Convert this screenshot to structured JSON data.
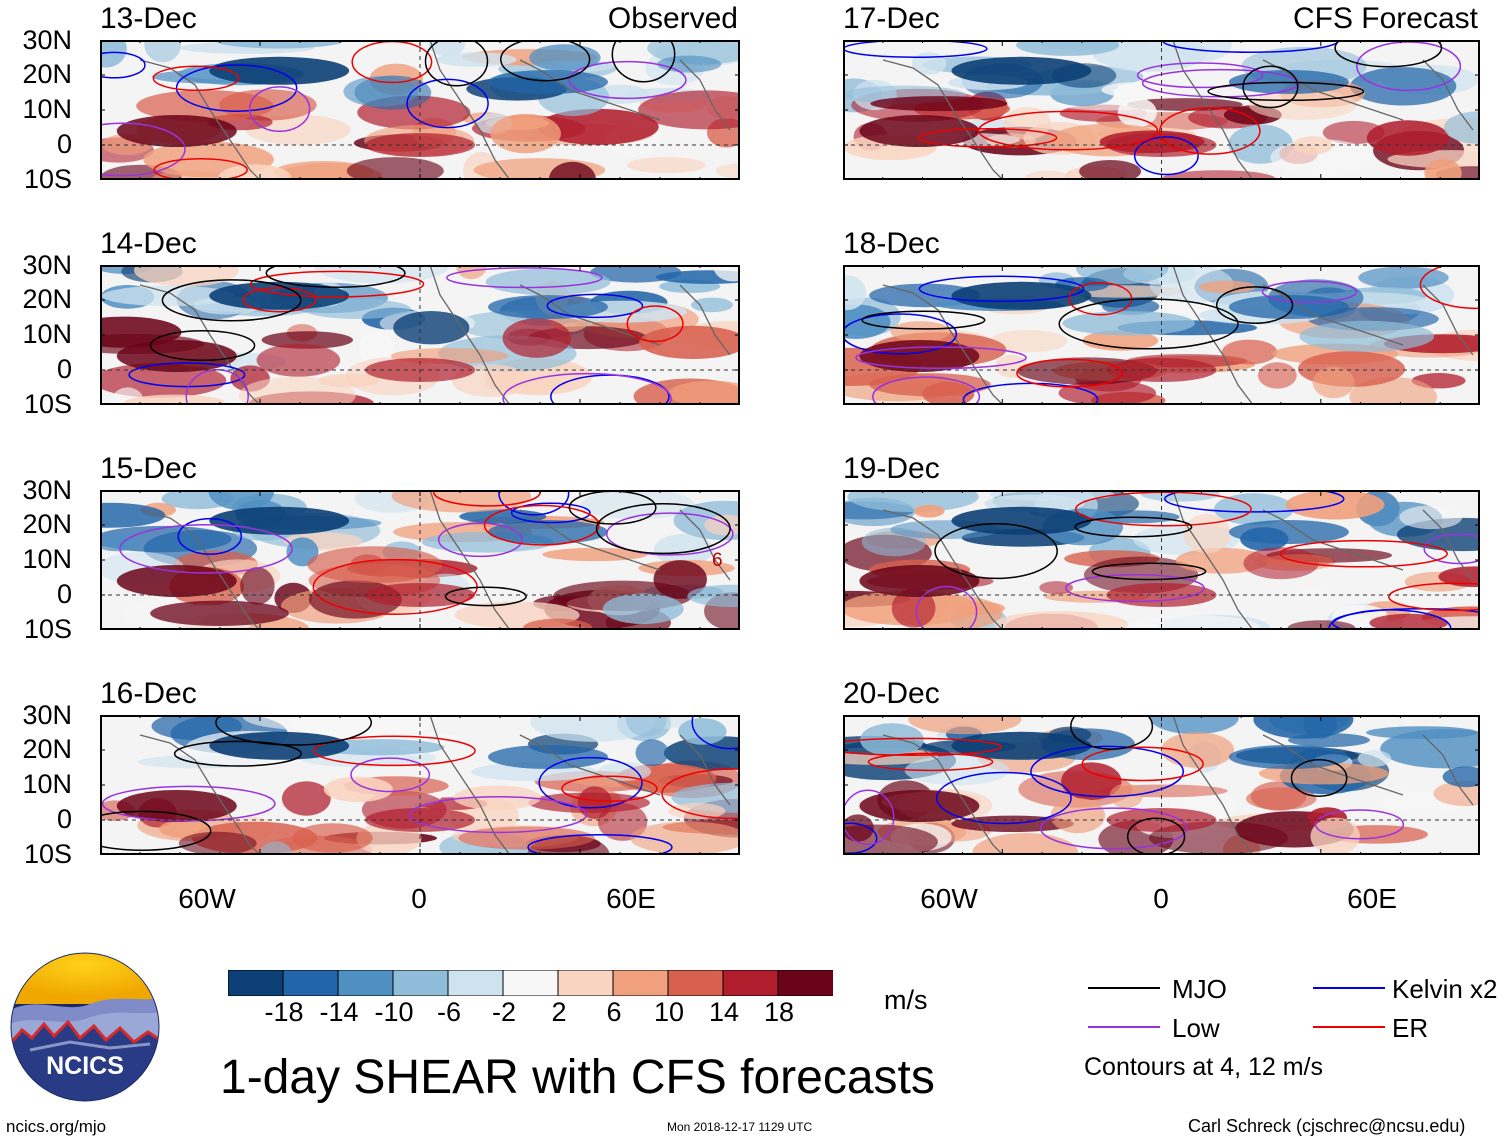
{
  "figure_title": "1-day SHEAR with CFS forecasts",
  "units": "m/s",
  "section_labels": {
    "observed": "Observed",
    "forecast": "CFS Forecast"
  },
  "panels": [
    {
      "date": "13-Dec",
      "kind": "observed"
    },
    {
      "date": "14-Dec",
      "kind": "observed"
    },
    {
      "date": "15-Dec",
      "kind": "observed"
    },
    {
      "date": "16-Dec",
      "kind": "observed"
    },
    {
      "date": "17-Dec",
      "kind": "forecast"
    },
    {
      "date": "18-Dec",
      "kind": "forecast"
    },
    {
      "date": "19-Dec",
      "kind": "forecast"
    },
    {
      "date": "20-Dec",
      "kind": "forecast"
    }
  ],
  "contour_annotation": "6",
  "lat_ticks": [
    "30N",
    "20N",
    "10N",
    "0",
    "10S"
  ],
  "lon_ticks": [
    "60W",
    "0",
    "60E"
  ],
  "colorbar": {
    "labels": [
      "-18",
      "-14",
      "-10",
      "-6",
      "-2",
      "2",
      "6",
      "10",
      "14",
      "18"
    ],
    "colors": [
      "#0b3f75",
      "#2265a8",
      "#4f8fc2",
      "#8fbcd9",
      "#cfe3ef",
      "#f7f7f7",
      "#f9d4c0",
      "#f0a07c",
      "#d8604e",
      "#b01e2e",
      "#6b0419"
    ]
  },
  "legend": {
    "items": [
      {
        "label": "MJO",
        "color": "#000000"
      },
      {
        "label": "Kelvin x2",
        "color": "#0000ee"
      },
      {
        "label": "Low",
        "color": "#9933dd"
      },
      {
        "label": "ER",
        "color": "#ee0000"
      }
    ],
    "contours_note": "Contours at 4, 12 m/s"
  },
  "logo_text": "NCICS",
  "footer": {
    "url": "ncics.org/mjo",
    "timestamp": "Mon 2018-12-17 1129 UTC",
    "author": "Carl Schreck (cjschrec@ncsu.edu)"
  }
}
